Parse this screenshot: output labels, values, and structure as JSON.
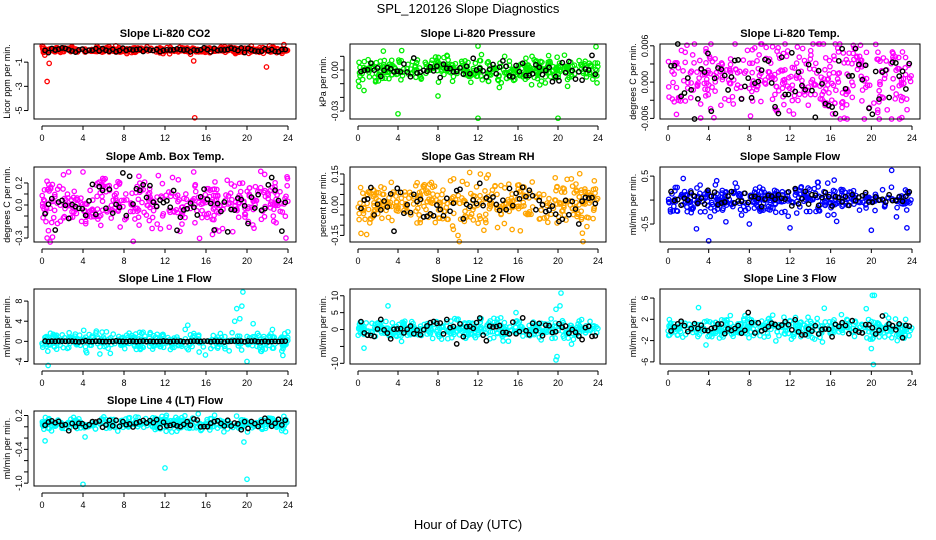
{
  "title": "SPL_120126  Slope Diagnostics",
  "xlabel": "Hour of Day (UTC)",
  "chart_data": [
    {
      "type": "scatter",
      "title": "Slope Li-820 CO2",
      "ylabel": "Licor ppm per min.",
      "color": "#ff0000",
      "xlim": [
        0,
        24
      ],
      "xticks": [
        0,
        4,
        8,
        12,
        16,
        20,
        24
      ],
      "ylim": [
        -5.7,
        0.5
      ],
      "yticks": [
        {
          "v": -5,
          "label": "-5"
        },
        {
          "v": -3,
          "label": "-3"
        },
        {
          "v": -1,
          "label": "-1"
        }
      ],
      "center": 0,
      "spread": 0.12,
      "mean_spread": 0.08,
      "outliers": [
        [
          0.5,
          -2.6
        ],
        [
          0.7,
          -1.1
        ],
        [
          14.8,
          -0.9
        ],
        [
          14.9,
          -5.6
        ],
        [
          21.9,
          -1.4
        ],
        [
          7.2,
          0.35
        ],
        [
          23.6,
          0.45
        ]
      ]
    },
    {
      "type": "scatter",
      "title": "Slope Li-820 Pressure",
      "ylabel": "kPa per min.",
      "color": "#00ee00",
      "xlim": [
        0,
        24
      ],
      "xticks": [
        0,
        4,
        8,
        12,
        16,
        20,
        24
      ],
      "ylim": [
        -0.0358,
        0.019
      ],
      "yticks": [
        {
          "v": -0.03,
          "label": "-0.03"
        },
        {
          "v": -0.02,
          "label": ""
        },
        {
          "v": -0.01,
          "label": ""
        },
        {
          "v": 0,
          "label": "0.00"
        },
        {
          "v": 0.01,
          "label": ""
        }
      ],
      "center": 0,
      "spread": 0.0045,
      "mean_spread": 0.005,
      "outliers": [
        [
          12,
          0.0175
        ],
        [
          23.8,
          0.017
        ],
        [
          4,
          -0.032
        ],
        [
          12,
          -0.0352
        ],
        [
          20,
          -0.0352
        ],
        [
          8,
          -0.019
        ],
        [
          0.1,
          -0.012
        ],
        [
          0.6,
          -0.015
        ]
      ]
    },
    {
      "type": "scatter",
      "title": "Slope Li-820 Temp.",
      "ylabel": "degrees C per min.",
      "color": "#ff00ff",
      "xlim": [
        0,
        24
      ],
      "xticks": [
        0,
        4,
        8,
        12,
        16,
        20,
        24
      ],
      "ylim": [
        -0.0061,
        0.0063
      ],
      "yticks": [
        {
          "v": -0.006,
          "label": "-0.006"
        },
        {
          "v": -0.003,
          "label": ""
        },
        {
          "v": 0,
          "label": "0.000"
        },
        {
          "v": 0.003,
          "label": ""
        },
        {
          "v": 0.006,
          "label": "0.006"
        }
      ],
      "center": 0.0005,
      "spread": 0.0032,
      "mean_spread": 0.003,
      "outliers": []
    },
    {
      "type": "scatter",
      "title": "Slope Amb. Box Temp.",
      "ylabel": "degrees C per min.",
      "color": "#ff00ff",
      "xlim": [
        0,
        24
      ],
      "xticks": [
        0,
        4,
        8,
        12,
        16,
        20,
        24
      ],
      "ylim": [
        -0.336,
        0.345
      ],
      "yticks": [
        {
          "v": -0.3,
          "label": "-0.3"
        },
        {
          "v": -0.2,
          "label": ""
        },
        {
          "v": -0.1,
          "label": ""
        },
        {
          "v": 0,
          "label": "0.0"
        },
        {
          "v": 0.1,
          "label": ""
        },
        {
          "v": 0.2,
          "label": "0.2"
        }
      ],
      "center": 0.02,
      "spread": 0.11,
      "mean_spread": 0.1,
      "outliers": [
        [
          0.5,
          -0.3
        ],
        [
          2.6,
          0.3
        ],
        [
          4,
          0.3
        ],
        [
          8.9,
          -0.33
        ],
        [
          14.8,
          0.3
        ],
        [
          23.8,
          -0.3
        ]
      ]
    },
    {
      "type": "scatter",
      "title": "Slope Gas Stream RH",
      "ylabel": "percent per min.",
      "color": "#ffa500",
      "xlim": [
        0,
        24
      ],
      "xticks": [
        0,
        4,
        8,
        12,
        16,
        20,
        24
      ],
      "ylim": [
        -0.182,
        0.184
      ],
      "yticks": [
        {
          "v": -0.15,
          "label": "-0.15"
        },
        {
          "v": -0.1,
          "label": ""
        },
        {
          "v": -0.05,
          "label": ""
        },
        {
          "v": 0,
          "label": "0.00"
        },
        {
          "v": 0.05,
          "label": ""
        },
        {
          "v": 0.1,
          "label": ""
        },
        {
          "v": 0.15,
          "label": "0.15"
        }
      ],
      "center": 0.0,
      "spread": 0.06,
      "mean_spread": 0.05,
      "outliers": [
        [
          0.3,
          -0.14
        ],
        [
          10,
          -0.15
        ],
        [
          22.5,
          -0.18
        ]
      ]
    },
    {
      "type": "scatter",
      "title": "Slope Sample Flow",
      "ylabel": "ml/min per min.",
      "color": "#0000ff",
      "xlim": [
        0,
        24
      ],
      "xticks": [
        0,
        4,
        8,
        12,
        16,
        20,
        24
      ],
      "ylim": [
        -0.875,
        0.69
      ],
      "yticks": [
        {
          "v": -0.5,
          "label": "-0.5"
        },
        {
          "v": 0,
          "label": ""
        },
        {
          "v": 0.5,
          "label": "0.5"
        }
      ],
      "center": 0.02,
      "spread": 0.14,
      "mean_spread": 0.1,
      "outliers": [
        [
          4,
          -0.85
        ],
        [
          2.8,
          -0.6
        ],
        [
          8,
          -0.5
        ],
        [
          12,
          -0.58
        ],
        [
          20,
          -0.63
        ],
        [
          23.5,
          -0.58
        ],
        [
          22,
          0.62
        ],
        [
          1.5,
          0.45
        ]
      ]
    },
    {
      "type": "scatter",
      "title": "Slope Line 1 Flow",
      "ylabel": "ml/min per min.",
      "color": "#00ffff",
      "xlim": [
        0,
        24
      ],
      "xticks": [
        0,
        4,
        8,
        12,
        16,
        20,
        24
      ],
      "ylim": [
        -4.5,
        10.4
      ],
      "yticks": [
        {
          "v": -4,
          "label": "-4"
        },
        {
          "v": 0,
          "label": "0"
        },
        {
          "v": 4,
          "label": "4"
        },
        {
          "v": 8,
          "label": "8"
        }
      ],
      "center": 0,
      "spread": 0.9,
      "mean_spread": 0.05,
      "outliers": [
        [
          0.6,
          -4.8
        ],
        [
          19,
          6.5
        ],
        [
          19.6,
          9.8
        ],
        [
          19.5,
          7
        ],
        [
          19.3,
          4.5
        ],
        [
          20,
          -4
        ],
        [
          20.6,
          3.5
        ],
        [
          23.5,
          -2.8
        ],
        [
          18.8,
          4
        ]
      ]
    },
    {
      "type": "scatter",
      "title": "Slope Line 2 Flow",
      "ylabel": "ml/min per min.",
      "color": "#00ffff",
      "xlim": [
        0,
        24
      ],
      "xticks": [
        0,
        4,
        8,
        12,
        16,
        20,
        24
      ],
      "ylim": [
        -10.2,
        12
      ],
      "yticks": [
        {
          "v": -10,
          "label": "-10"
        },
        {
          "v": -5,
          "label": ""
        },
        {
          "v": 0,
          "label": "0"
        },
        {
          "v": 5,
          "label": "5"
        },
        {
          "v": 10,
          "label": "10"
        }
      ],
      "center": 0,
      "spread": 1.4,
      "mean_spread": 1.4,
      "outliers": [
        [
          3,
          7
        ],
        [
          0.6,
          -5.5
        ],
        [
          20.3,
          10.8
        ],
        [
          20.2,
          7
        ],
        [
          15.8,
          5
        ],
        [
          19.8,
          -9
        ],
        [
          19.9,
          -8
        ],
        [
          19.8,
          6
        ]
      ]
    },
    {
      "type": "scatter",
      "title": "Slope Line 3 Flow",
      "ylabel": "ml/min per min.",
      "color": "#00ffff",
      "xlim": [
        0,
        24
      ],
      "xticks": [
        0,
        4,
        8,
        12,
        16,
        20,
        24
      ],
      "ylim": [
        -6.4,
        7.7
      ],
      "yticks": [
        {
          "v": -6,
          "label": "-6"
        },
        {
          "v": -2,
          "label": "-2"
        },
        {
          "v": 2,
          "label": "2"
        },
        {
          "v": 6,
          "label": "6"
        }
      ],
      "center": 0.3,
      "spread": 1.0,
      "mean_spread": 0.9,
      "outliers": [
        [
          3,
          4.2
        ],
        [
          20.1,
          6.5
        ],
        [
          20.3,
          6.5
        ],
        [
          19.5,
          4
        ],
        [
          20.2,
          -6.5
        ],
        [
          20,
          -3.5
        ]
      ]
    },
    {
      "type": "scatter",
      "title": "Slope Line 4 (LT) Flow",
      "ylabel": "ml/min per min.",
      "color": "#00ffff",
      "xlim": [
        0,
        24
      ],
      "xticks": [
        0,
        4,
        8,
        12,
        16,
        20,
        24
      ],
      "ylim": [
        -1.05,
        0.28
      ],
      "yticks": [
        {
          "v": -1.0,
          "label": "-1.0"
        },
        {
          "v": -0.8,
          "label": ""
        },
        {
          "v": -0.6,
          "label": ""
        },
        {
          "v": -0.4,
          "label": "-0.4"
        },
        {
          "v": -0.2,
          "label": ""
        },
        {
          "v": 0,
          "label": ""
        },
        {
          "v": 0.2,
          "label": "0.2"
        }
      ],
      "center": 0.05,
      "spread": 0.06,
      "mean_spread": 0.05,
      "outliers": [
        [
          0.3,
          -0.25
        ],
        [
          4,
          -1.02
        ],
        [
          12,
          -0.73
        ],
        [
          20,
          -0.93
        ],
        [
          4.2,
          -0.18
        ],
        [
          19.7,
          -0.27
        ]
      ]
    }
  ]
}
